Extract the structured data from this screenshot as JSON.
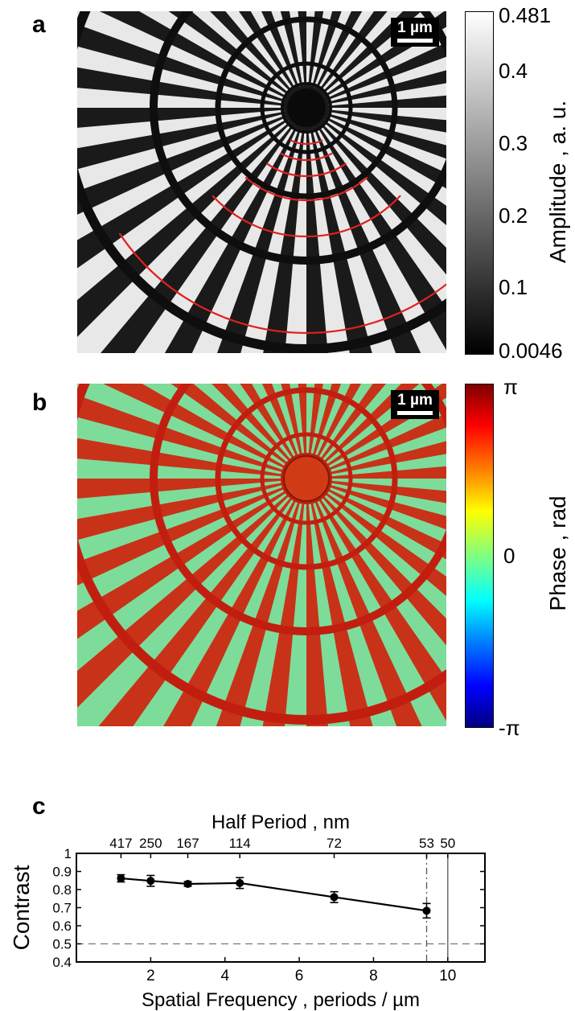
{
  "panels": {
    "a": {
      "letter": "a",
      "scale_bar": "1 µm",
      "colorbar": {
        "label": "Amplitude , a. u.",
        "ticks": [
          "0.481",
          "0.4",
          "0.3",
          "0.2",
          "0.1",
          "0.0046"
        ],
        "tick_values": [
          0.481,
          0.4,
          0.3,
          0.2,
          0.1,
          0.0046
        ],
        "colormap": "gray"
      },
      "highlight_color": "#e02020"
    },
    "b": {
      "letter": "b",
      "scale_bar": "1 µm",
      "colorbar": {
        "label": "Phase , rad",
        "ticks": [
          "π",
          "0",
          "-π"
        ],
        "colormap": "jet"
      }
    },
    "c": {
      "letter": "c"
    }
  },
  "chart_data": {
    "type": "line",
    "title": "",
    "xlabel": "Spatial Frequency , periods / µm",
    "ylabel": "Contrast",
    "top_xlabel": "Half Period , nm",
    "xlim": [
      0,
      11
    ],
    "ylim": [
      0.4,
      1
    ],
    "x_ticks": [
      "2",
      "4",
      "6",
      "8",
      "10"
    ],
    "x_tick_values": [
      2,
      4,
      6,
      8,
      10
    ],
    "y_ticks": [
      "0.4",
      "0.5",
      "0.6",
      "0.7",
      "0.8",
      "0.9",
      "1"
    ],
    "y_tick_values": [
      0.4,
      0.5,
      0.6,
      0.7,
      0.8,
      0.9,
      1
    ],
    "top_ticks": [
      "417",
      "250",
      "167",
      "114",
      "72",
      "53",
      "50"
    ],
    "top_tick_values": [
      1.2,
      2.0,
      3.0,
      4.4,
      6.94,
      9.43,
      10.0
    ],
    "series": [
      {
        "x": [
          1.2,
          2.0,
          3.0,
          4.4,
          6.94,
          9.43
        ],
        "y": [
          0.862,
          0.848,
          0.831,
          0.836,
          0.758,
          0.683
        ],
        "err": [
          0.02,
          0.03,
          0.013,
          0.03,
          0.03,
          0.04
        ]
      }
    ],
    "reference_lines": [
      {
        "orientation": "horizontal",
        "value": 0.5,
        "style": "dashed"
      },
      {
        "orientation": "vertical",
        "value": 9.43,
        "style": "dash-dot"
      },
      {
        "orientation": "vertical",
        "value": 10.0,
        "style": "solid"
      }
    ],
    "grid": false
  }
}
